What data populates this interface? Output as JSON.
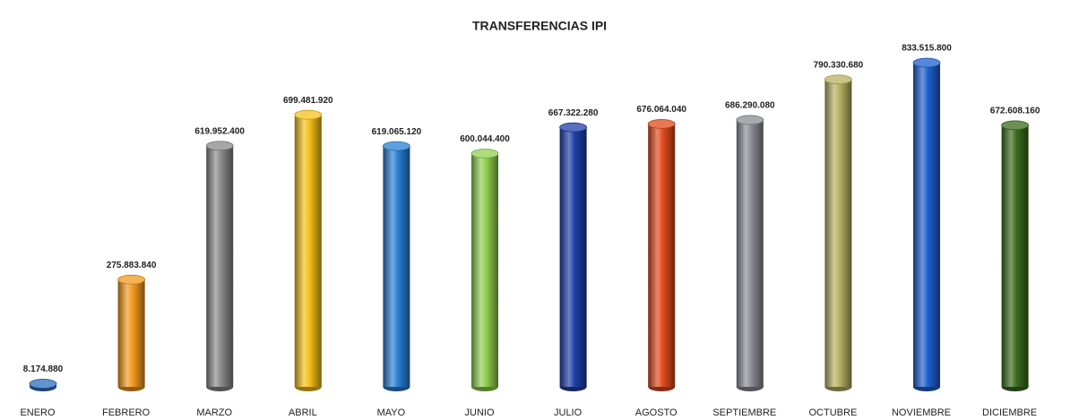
{
  "chart_data": {
    "type": "bar3d",
    "title": "TRANSFERENCIAS IPI",
    "categories": [
      "ENERO",
      "FEBRERO",
      "MARZO",
      "ABRIL",
      "MAYO",
      "JUNIO",
      "JULIO",
      "AGOSTO",
      "SEPTIEMBRE",
      "OCTUBRE",
      "NOVIEMBRE",
      "DICIEMBRE"
    ],
    "values": [
      8174880,
      275883840,
      619952400,
      699481920,
      619065120,
      600044400,
      667322280,
      676064040,
      686290080,
      790330680,
      833515800,
      672608160
    ],
    "value_labels": [
      "8.174.880",
      "275.883.840",
      "619.952.400",
      "699.481.920",
      "619.065.120",
      "600.044.400",
      "667.322.280",
      "676.064.040",
      "686.290.080",
      "790.330.680",
      "833.515.800",
      "672.608.160"
    ],
    "colors": [
      "#2e6fc0",
      "#f39a1e",
      "#8a8a8a",
      "#f5c01a",
      "#2a7fd4",
      "#92d050",
      "#1f3fa8",
      "#e04a1c",
      "#8c8c96",
      "#b8b060",
      "#1f5fd0",
      "#3a6b1e"
    ]
  }
}
